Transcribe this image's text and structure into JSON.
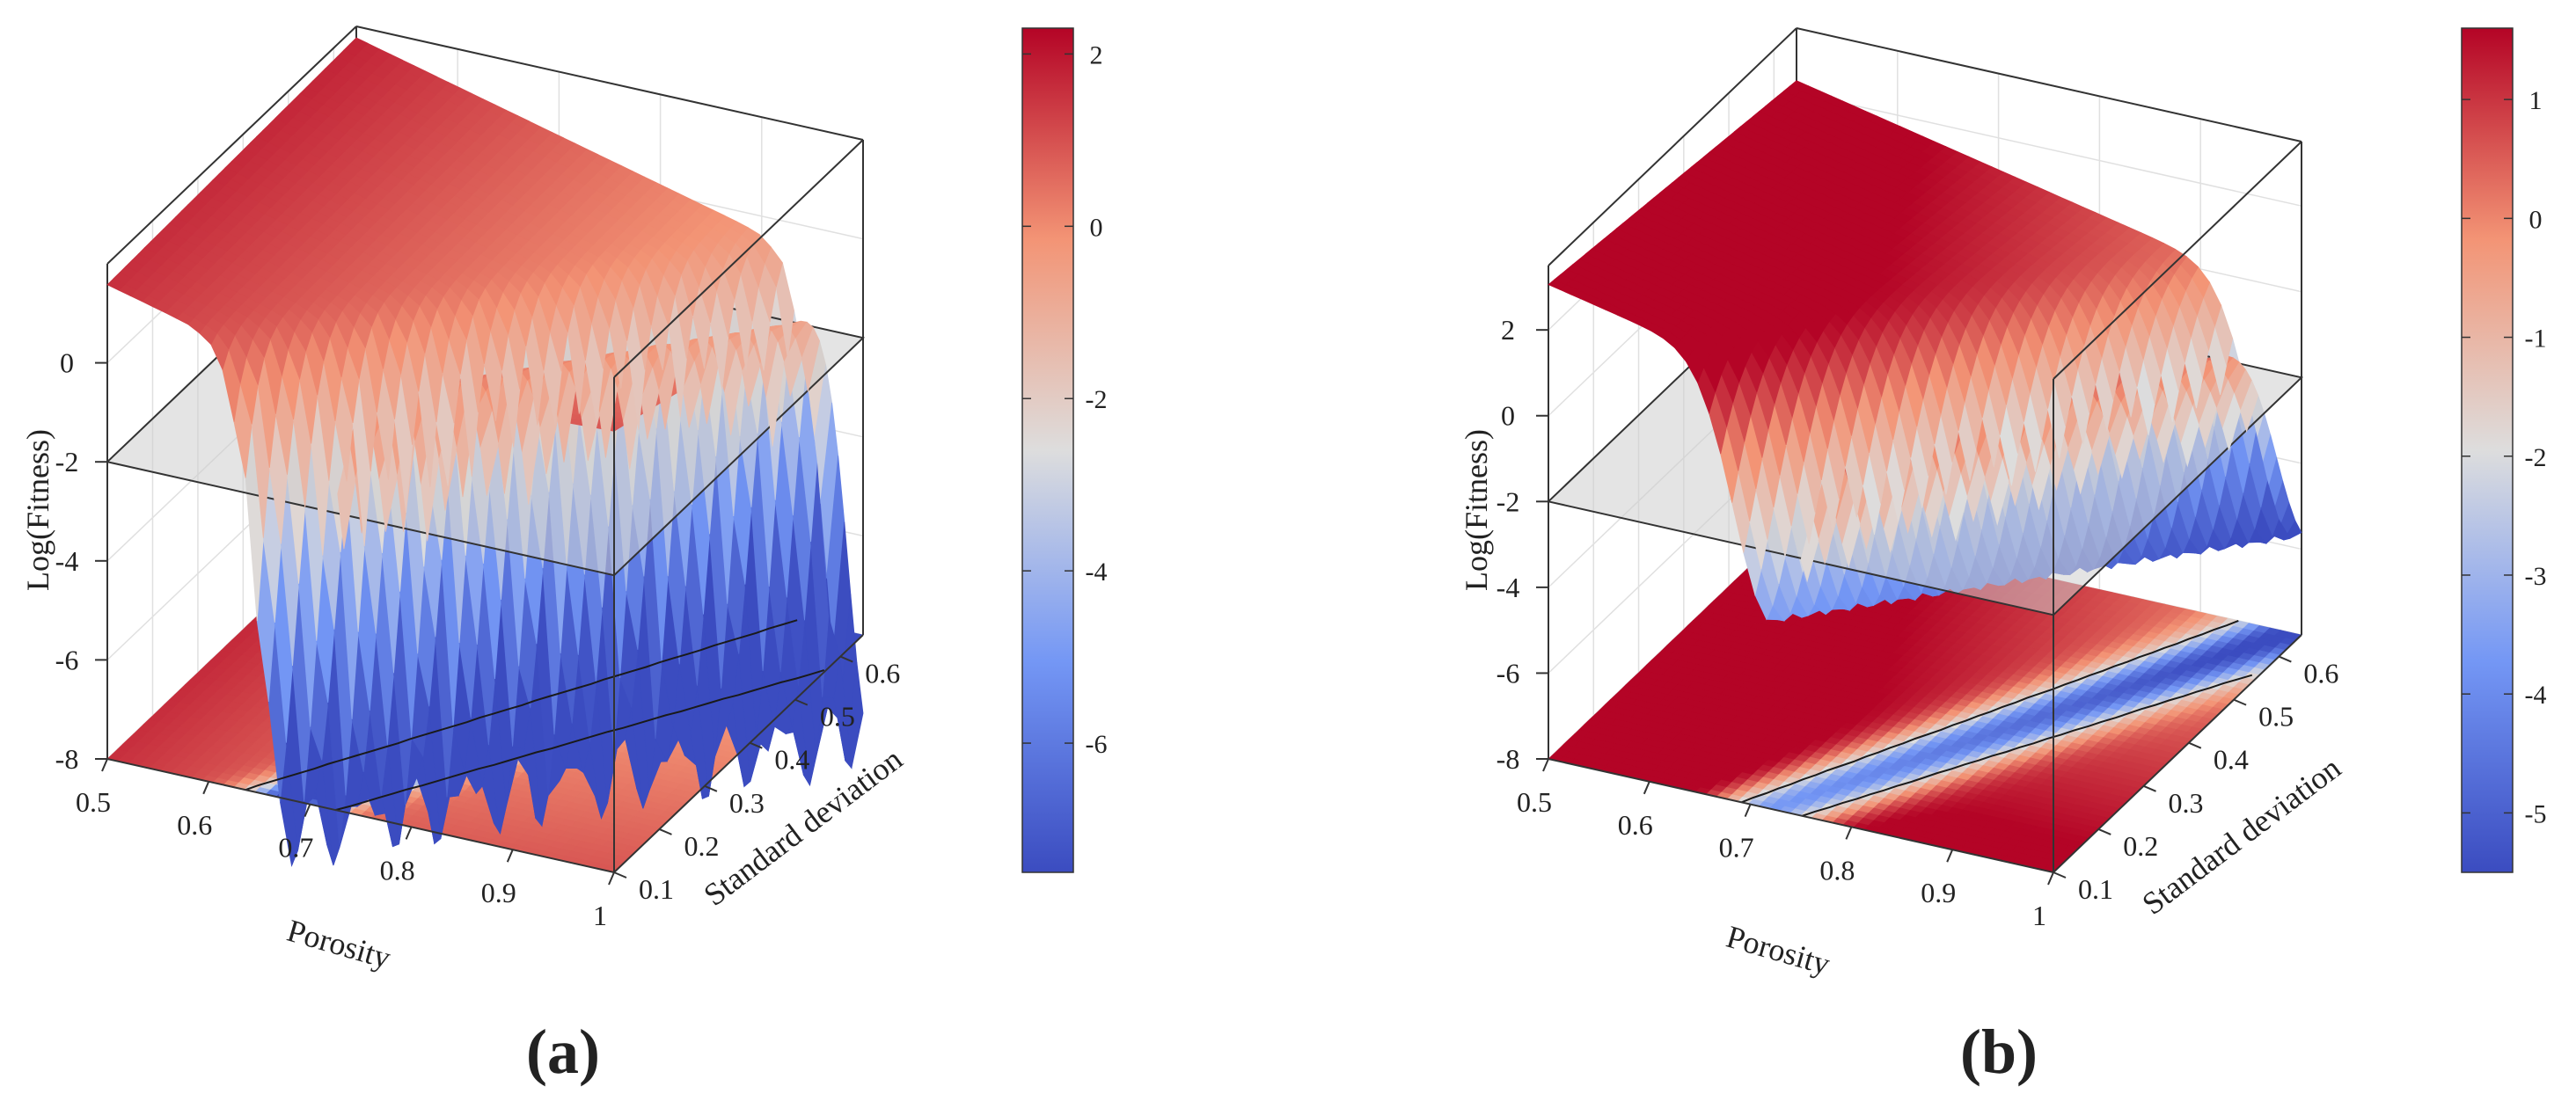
{
  "figure": {
    "panel_labels": [
      "(a)",
      "(b)"
    ]
  },
  "chart_data": [
    {
      "type": "surface3d",
      "panel_label": "(a)",
      "xlabel": "Porosity",
      "ylabel": "Standard deviation",
      "zlabel": "Log(Fitness)",
      "x_ticks": [
        "0.5",
        "0.6",
        "0.7",
        "0.8",
        "0.9",
        "1"
      ],
      "y_ticks": [
        "0.1",
        "0.2",
        "0.3",
        "0.4",
        "0.5",
        "0.6"
      ],
      "z_ticks": [
        "-8",
        "-6",
        "-4",
        "-2",
        "0"
      ],
      "xlim": [
        0.5,
        1.0
      ],
      "ylim": [
        0.1,
        0.65
      ],
      "zlim": [
        -8,
        2
      ],
      "threshold_plane_z": -2,
      "colorbar": {
        "range": [
          -7.5,
          2.3
        ],
        "ticks": [
          "-6",
          "-4",
          "-2",
          "0",
          "2"
        ]
      },
      "valley": {
        "porosity_at_sd_0_1": 0.68,
        "porosity_at_sd_0_65": 0.99,
        "min_log_fitness": -7.2
      },
      "contour_level": -2,
      "colormap": "coolwarm"
    },
    {
      "type": "surface3d",
      "panel_label": "(b)",
      "xlabel": "Porosity",
      "ylabel": "Standard deviation",
      "zlabel": "Log(Fitness)",
      "x_ticks": [
        "0.5",
        "0.6",
        "0.7",
        "0.8",
        "0.9",
        "1"
      ],
      "y_ticks": [
        "0.1",
        "0.2",
        "0.3",
        "0.4",
        "0.5",
        "0.6"
      ],
      "z_ticks": [
        "-8",
        "-6",
        "-4",
        "-2",
        "0",
        "2"
      ],
      "xlim": [
        0.5,
        1.0
      ],
      "ylim": [
        0.1,
        0.65
      ],
      "zlim": [
        -8,
        3.5
      ],
      "threshold_plane_z": -2,
      "colorbar": {
        "range": [
          -5.5,
          1.6
        ],
        "ticks": [
          "-5",
          "-4",
          "-3",
          "-2",
          "-1",
          "0",
          "1"
        ]
      },
      "valley": {
        "porosity_at_sd_0_1": 0.72,
        "porosity_at_sd_0_65": 0.99,
        "min_log_fitness": -5.4
      },
      "contour_level": -2,
      "colormap": "coolwarm"
    }
  ]
}
